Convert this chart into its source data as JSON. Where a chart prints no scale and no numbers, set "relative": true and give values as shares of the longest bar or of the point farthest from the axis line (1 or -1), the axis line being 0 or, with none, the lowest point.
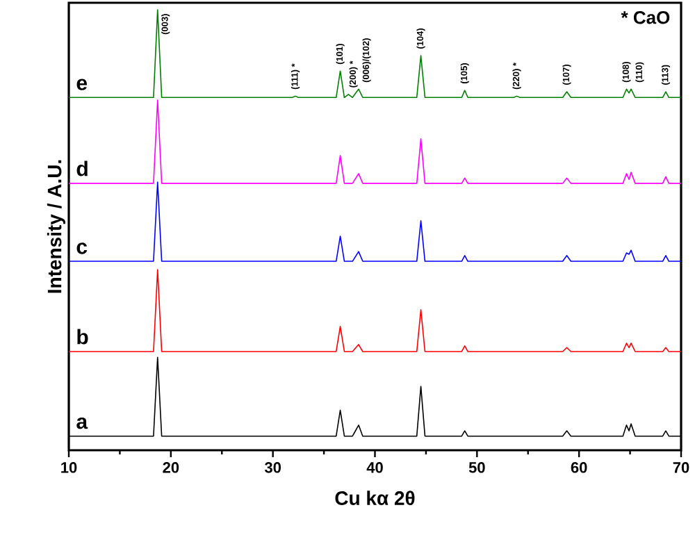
{
  "chart_data": {
    "type": "line",
    "relative": true,
    "xlabel": "Cu kα 2θ",
    "ylabel": "Intensity / A.U.",
    "xlim": [
      10,
      70
    ],
    "xticks": [
      10,
      20,
      30,
      40,
      50,
      60,
      70
    ],
    "x": [
      10,
      18.3,
      18.7,
      19.1,
      31.9,
      32.2,
      32.5,
      36.2,
      36.6,
      37.0,
      37.4,
      37.8,
      38.4,
      38.8,
      44.1,
      44.5,
      44.9,
      48.5,
      48.8,
      49.1,
      53.6,
      53.9,
      54.2,
      58.4,
      58.8,
      59.2,
      64.3,
      64.65,
      64.9,
      65.1,
      65.5,
      68.2,
      68.5,
      68.8,
      70
    ],
    "series": [
      {
        "name": "a",
        "color": "#000000",
        "values": [
          0.032,
          0.032,
          0.211,
          0.032,
          0.032,
          0.032,
          0.032,
          0.032,
          0.091,
          0.032,
          0.032,
          0.032,
          0.057,
          0.032,
          0.032,
          0.145,
          0.032,
          0.032,
          0.044,
          0.032,
          0.032,
          0.032,
          0.032,
          0.032,
          0.044,
          0.032,
          0.032,
          0.057,
          0.044,
          0.06,
          0.032,
          0.032,
          0.044,
          0.032,
          0.032
        ]
      },
      {
        "name": "b",
        "color": "#ff0000",
        "values": [
          0.224,
          0.224,
          0.41,
          0.224,
          0.224,
          0.224,
          0.224,
          0.224,
          0.281,
          0.224,
          0.224,
          0.224,
          0.24,
          0.224,
          0.224,
          0.319,
          0.224,
          0.224,
          0.237,
          0.224,
          0.224,
          0.224,
          0.224,
          0.224,
          0.233,
          0.224,
          0.224,
          0.243,
          0.233,
          0.243,
          0.224,
          0.224,
          0.233,
          0.224,
          0.224
        ]
      },
      {
        "name": "c",
        "color": "#0000ff",
        "values": [
          0.429,
          0.429,
          0.609,
          0.429,
          0.429,
          0.429,
          0.429,
          0.429,
          0.486,
          0.429,
          0.429,
          0.429,
          0.451,
          0.429,
          0.429,
          0.521,
          0.429,
          0.429,
          0.442,
          0.429,
          0.429,
          0.429,
          0.429,
          0.429,
          0.442,
          0.429,
          0.429,
          0.448,
          0.445,
          0.454,
          0.429,
          0.429,
          0.442,
          0.429,
          0.429
        ]
      },
      {
        "name": "d",
        "color": "#ff00ff",
        "values": [
          0.606,
          0.606,
          0.795,
          0.606,
          0.606,
          0.606,
          0.606,
          0.606,
          0.669,
          0.606,
          0.606,
          0.606,
          0.628,
          0.606,
          0.606,
          0.707,
          0.606,
          0.606,
          0.618,
          0.606,
          0.606,
          0.606,
          0.606,
          0.606,
          0.618,
          0.606,
          0.606,
          0.628,
          0.615,
          0.631,
          0.606,
          0.606,
          0.621,
          0.606,
          0.606
        ]
      },
      {
        "name": "e",
        "color": "#008000",
        "values": [
          0.801,
          0.801,
          1.0,
          0.801,
          0.801,
          0.804,
          0.801,
          0.801,
          0.861,
          0.801,
          0.808,
          0.801,
          0.82,
          0.801,
          0.801,
          0.896,
          0.801,
          0.801,
          0.817,
          0.801,
          0.801,
          0.804,
          0.801,
          0.801,
          0.814,
          0.801,
          0.801,
          0.82,
          0.811,
          0.82,
          0.801,
          0.801,
          0.814,
          0.801,
          0.801
        ]
      }
    ],
    "annotations": [
      {
        "text": "(003)",
        "x": 18.7,
        "y": 1.0
      },
      {
        "text": "(111) *",
        "x": 32.2,
        "y": 0.804
      },
      {
        "text": "(101)",
        "x": 36.6,
        "y": 0.861
      },
      {
        "text": "(200) *",
        "x": 37.4,
        "y": 0.808
      },
      {
        "text": "(006)/(102)",
        "x": 38.4,
        "y": 0.82
      },
      {
        "text": "(104)",
        "x": 44.5,
        "y": 0.896
      },
      {
        "text": "(105)",
        "x": 48.8,
        "y": 0.817
      },
      {
        "text": "(220) *",
        "x": 53.9,
        "y": 0.804
      },
      {
        "text": "(107)",
        "x": 58.8,
        "y": 0.814
      },
      {
        "text": "(108)",
        "x": 64.65,
        "y": 0.82
      },
      {
        "text": "(110)",
        "x": 65.1,
        "y": 0.82
      },
      {
        "text": "(113)",
        "x": 68.5,
        "y": 0.814
      },
      "* CaO"
    ]
  }
}
